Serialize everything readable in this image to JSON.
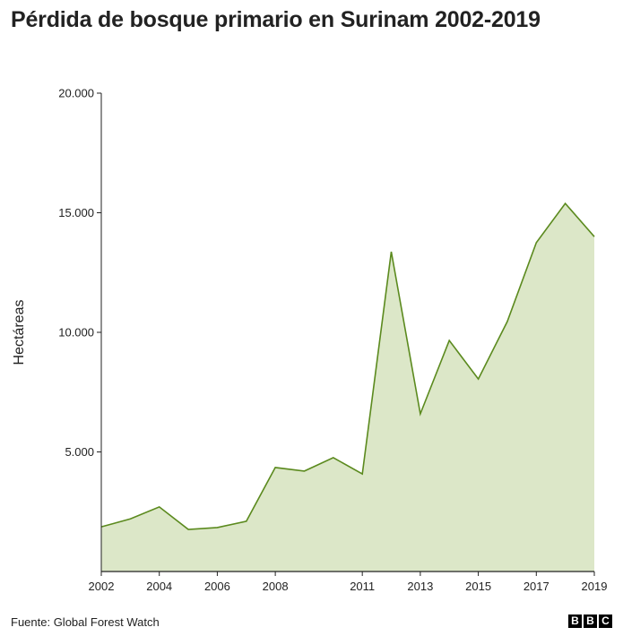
{
  "title": "Pérdida de bosque primario en Surinam 2002-2019",
  "source": "Fuente: Global Forest Watch",
  "logo": [
    "B",
    "B",
    "C"
  ],
  "colors": {
    "line": "#5b8a1e",
    "fill": "#dce7c8",
    "axis": "#222222"
  },
  "chart_data": {
    "type": "area",
    "title": "Pérdida de bosque primario en Surinam 2002-2019",
    "xlabel": "",
    "ylabel": "Hectáreas",
    "x": [
      2002,
      2003,
      2004,
      2005,
      2006,
      2007,
      2008,
      2009,
      2010,
      2011,
      2012,
      2013,
      2014,
      2015,
      2016,
      2017,
      2018,
      2019
    ],
    "series": [
      {
        "name": "Pérdida de bosque primario",
        "values": [
          1870,
          2200,
          2700,
          1760,
          1840,
          2100,
          4350,
          4200,
          4760,
          4080,
          13370,
          6590,
          9660,
          8050,
          10450,
          13750,
          15390,
          14000
        ]
      }
    ],
    "xticks": [
      "2002",
      "2004",
      "2006",
      "2008",
      "2011",
      "2013",
      "2015",
      "2017",
      "2019"
    ],
    "yticks": [
      "5.000",
      "10.000",
      "15.000",
      "20.000"
    ],
    "ytick_values": [
      5000,
      10000,
      15000,
      20000
    ],
    "ylim": [
      0,
      20000
    ],
    "xlim": [
      2002,
      2019
    ],
    "grid": false,
    "legend": "none"
  }
}
